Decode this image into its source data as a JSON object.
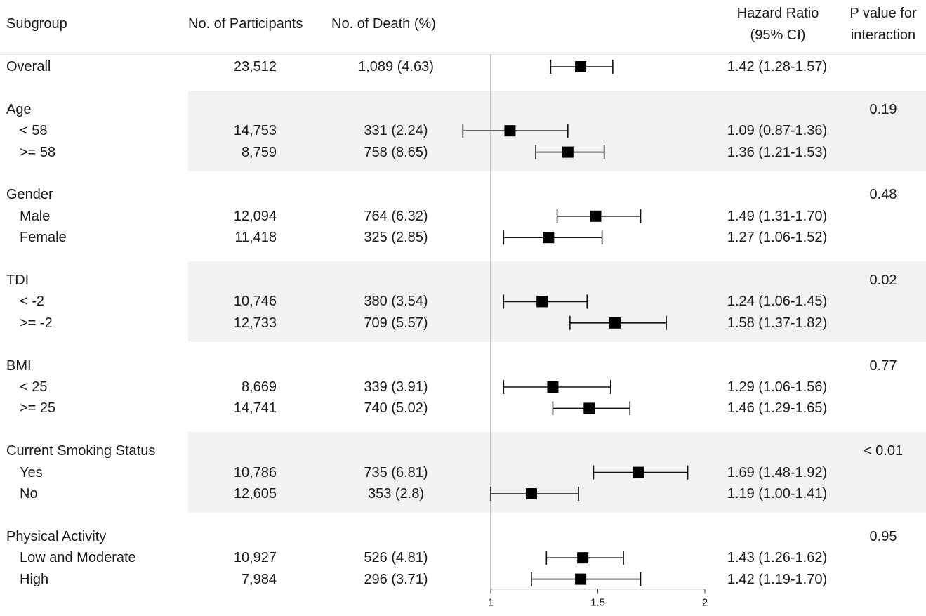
{
  "headers": {
    "subgroup": "Subgroup",
    "participants": "No. of Participants",
    "deaths": "No. of Death (%)",
    "hr_line1": "Hazard Ratio",
    "hr_line2": "(95% CI)",
    "p_line1": "P value for",
    "p_line2": "interaction"
  },
  "chart_data": {
    "type": "forest",
    "xlabel": "",
    "x_ticks": [
      "1",
      "1.5",
      "2"
    ],
    "x_range": [
      1,
      2
    ],
    "reference_line": 1,
    "rows": [
      {
        "label": "Overall",
        "header": false,
        "participants": "23,512",
        "deaths": "1,089 (4.63)",
        "hr": 1.42,
        "lo": 1.28,
        "hi": 1.57,
        "hr_text": "1.42 (1.28-1.57)",
        "p": ""
      },
      {
        "label": "Age",
        "header": true,
        "p": "0.19"
      },
      {
        "label": "< 58",
        "header": false,
        "participants": "14,753",
        "deaths": "331 (2.24)",
        "hr": 1.09,
        "lo": 0.87,
        "hi": 1.36,
        "hr_text": "1.09 (0.87-1.36)",
        "p": ""
      },
      {
        "label": ">= 58",
        "header": false,
        "participants": "8,759",
        "deaths": "758 (8.65)",
        "hr": 1.36,
        "lo": 1.21,
        "hi": 1.53,
        "hr_text": "1.36 (1.21-1.53)",
        "p": ""
      },
      {
        "label": "Gender",
        "header": true,
        "p": "0.48"
      },
      {
        "label": "Male",
        "header": false,
        "participants": "12,094",
        "deaths": "764 (6.32)",
        "hr": 1.49,
        "lo": 1.31,
        "hi": 1.7,
        "hr_text": "1.49 (1.31-1.70)",
        "p": ""
      },
      {
        "label": "Female",
        "header": false,
        "participants": "11,418",
        "deaths": "325 (2.85)",
        "hr": 1.27,
        "lo": 1.06,
        "hi": 1.52,
        "hr_text": "1.27 (1.06-1.52)",
        "p": ""
      },
      {
        "label": "TDI",
        "header": true,
        "p": "0.02"
      },
      {
        "label": "< -2",
        "header": false,
        "participants": "10,746",
        "deaths": "380 (3.54)",
        "hr": 1.24,
        "lo": 1.06,
        "hi": 1.45,
        "hr_text": "1.24 (1.06-1.45)",
        "p": ""
      },
      {
        "label": ">= -2",
        "header": false,
        "participants": "12,733",
        "deaths": "709 (5.57)",
        "hr": 1.58,
        "lo": 1.37,
        "hi": 1.82,
        "hr_text": "1.58 (1.37-1.82)",
        "p": ""
      },
      {
        "label": "BMI",
        "header": true,
        "p": "0.77"
      },
      {
        "label": "< 25",
        "header": false,
        "participants": "8,669",
        "deaths": "339 (3.91)",
        "hr": 1.29,
        "lo": 1.06,
        "hi": 1.56,
        "hr_text": "1.29 (1.06-1.56)",
        "p": ""
      },
      {
        "label": ">= 25",
        "header": false,
        "participants": "14,741",
        "deaths": "740 (5.02)",
        "hr": 1.46,
        "lo": 1.29,
        "hi": 1.65,
        "hr_text": "1.46 (1.29-1.65)",
        "p": ""
      },
      {
        "label": "Current Smoking Status",
        "header": true,
        "p": "< 0.01"
      },
      {
        "label": "Yes",
        "header": false,
        "participants": "10,786",
        "deaths": "735 (6.81)",
        "hr": 1.69,
        "lo": 1.48,
        "hi": 1.92,
        "hr_text": "1.69 (1.48-1.92)",
        "p": ""
      },
      {
        "label": "No",
        "header": false,
        "participants": "12,605",
        "deaths": "353 (2.8)",
        "hr": 1.19,
        "lo": 1.0,
        "hi": 1.41,
        "hr_text": "1.19 (1.00-1.41)",
        "p": ""
      },
      {
        "label": "Physical Activity",
        "header": true,
        "p": "0.95"
      },
      {
        "label": "Low and Moderate",
        "header": false,
        "participants": "10,927",
        "deaths": "526 (4.81)",
        "hr": 1.43,
        "lo": 1.26,
        "hi": 1.62,
        "hr_text": "1.43 (1.26-1.62)",
        "p": ""
      },
      {
        "label": "High",
        "header": false,
        "participants": "7,984",
        "deaths": "296 (3.71)",
        "hr": 1.42,
        "lo": 1.19,
        "hi": 1.7,
        "hr_text": "1.42 (1.19-1.70)",
        "p": ""
      }
    ]
  }
}
